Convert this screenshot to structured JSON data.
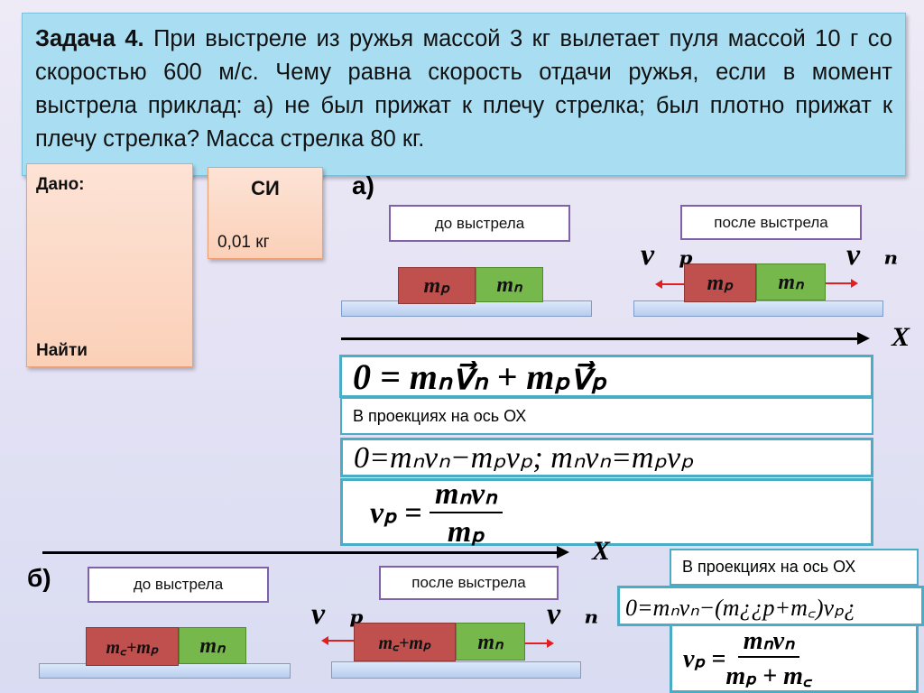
{
  "problem": {
    "label": "Задача 4.",
    "text": "При выстреле из ружья массой 3 кг вылетает пуля массой 10 г со скоростью 600 м/с. Чему равна скорость отдачи ружья, если в момент выстрела приклад: а) не был прижат к плечу стрелка; был плотно прижат к плечу стрелка? Масса стрелка 80 кг."
  },
  "given": {
    "title": "Дано:",
    "find": "Найти"
  },
  "si": {
    "title": "СИ",
    "value": "0,01 кг"
  },
  "part_a": {
    "label": "а)",
    "before": "до выстрела",
    "after": "после выстрела",
    "axis": "X",
    "f1": "0 = mₙv⃗ₙ + mₚv⃗ₚ",
    "projection": "В проекциях на ось ОХ",
    "f2": "0=mₙvₙ−mₚvₚ; mₙvₙ=mₚvₚ",
    "f3_lhs": "vₚ =",
    "f3_num": "mₙvₙ",
    "f3_den": "mₚ"
  },
  "part_b": {
    "label": "б)",
    "before": "до выстрела",
    "after": "после выстрела",
    "axis": "X",
    "projection": "В проекциях на ось ОХ",
    "f1": "0=mₙvₙ−(m¿¿p+m꜀)vₚ¿",
    "f2_lhs": "vₚ =",
    "f2_num": "mₙvₙ",
    "f2_den": "mₚ + m꜀"
  },
  "blocks": {
    "rifle": "mₚ",
    "bullet": "mₙ",
    "rifle_shooter": "m꜀+mₚ",
    "v_rifle": "v⃗ₚ",
    "v_bullet": "v⃗ₙ"
  },
  "colors": {
    "rifle": "#c0504d",
    "bullet": "#77b84c",
    "arrow": "#e02020",
    "formula_border": "#4bacc6"
  }
}
